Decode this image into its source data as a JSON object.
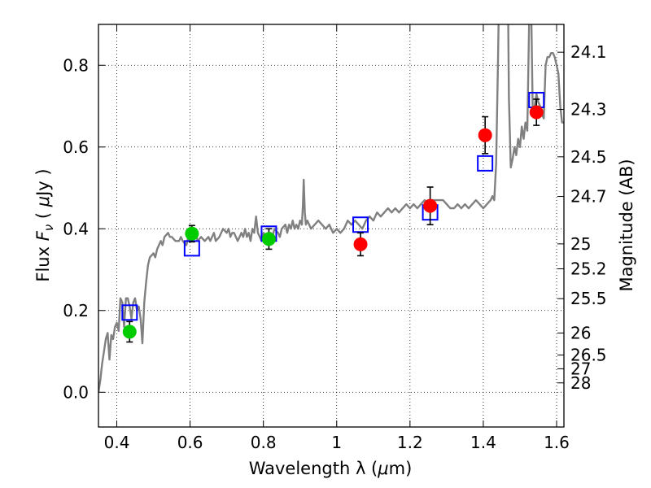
{
  "chart_data": {
    "type": "scatter",
    "title": "",
    "xlabel_prefix": "Wavelength  λ (",
    "xlabel_mu": "μ",
    "xlabel_suffix": "m)",
    "ylabel_prefix": "Flux  ",
    "ylabel_F": "F",
    "ylabel_nu": "ν",
    "ylabel_unit_open": "  ( ",
    "ylabel_mu": "μ",
    "ylabel_unit_close": "Jy )",
    "y2label": "Magnitude (AB)",
    "xlim": [
      0.35,
      1.62
    ],
    "ylim": [
      -0.085,
      0.9
    ],
    "grid": true,
    "x_ticks": [
      {
        "value": 0.4,
        "label": "0.4"
      },
      {
        "value": 0.6,
        "label": "0.6"
      },
      {
        "value": 0.8,
        "label": "0.8"
      },
      {
        "value": 1.0,
        "label": "1"
      },
      {
        "value": 1.2,
        "label": "1.2"
      },
      {
        "value": 1.4,
        "label": "1.4"
      },
      {
        "value": 1.6,
        "label": "1.6"
      }
    ],
    "y_ticks": [
      {
        "value": 0.0,
        "label": "0.0"
      },
      {
        "value": 0.2,
        "label": "0.2"
      },
      {
        "value": 0.4,
        "label": "0.4"
      },
      {
        "value": 0.6,
        "label": "0.6"
      },
      {
        "value": 0.8,
        "label": "0.8"
      }
    ],
    "y2_ticks": [
      {
        "flux": 0.832,
        "label": "24.1"
      },
      {
        "flux": 0.692,
        "label": "24.3"
      },
      {
        "flux": 0.576,
        "label": "24.5"
      },
      {
        "flux": 0.479,
        "label": "24.7"
      },
      {
        "flux": 0.363,
        "label": "25"
      },
      {
        "flux": 0.302,
        "label": "25.2"
      },
      {
        "flux": 0.229,
        "label": "25.5"
      },
      {
        "flux": 0.145,
        "label": "26"
      },
      {
        "flux": 0.0912,
        "label": "26.5"
      },
      {
        "flux": 0.0575,
        "label": "27"
      },
      {
        "flux": 0.0229,
        "label": "28"
      }
    ],
    "series": [
      {
        "kind": "line",
        "color": "#808080",
        "points": [
          [
            0.35,
            0.0
          ],
          [
            0.355,
            0.03
          ],
          [
            0.36,
            0.07
          ],
          [
            0.365,
            0.1
          ],
          [
            0.37,
            0.13
          ],
          [
            0.375,
            0.145
          ],
          [
            0.38,
            0.08
          ],
          [
            0.385,
            0.14
          ],
          [
            0.39,
            0.13
          ],
          [
            0.395,
            0.16
          ],
          [
            0.4,
            0.17
          ],
          [
            0.405,
            0.15
          ],
          [
            0.41,
            0.23
          ],
          [
            0.415,
            0.22
          ],
          [
            0.42,
            0.16
          ],
          [
            0.425,
            0.23
          ],
          [
            0.43,
            0.23
          ],
          [
            0.435,
            0.21
          ],
          [
            0.44,
            0.18
          ],
          [
            0.445,
            0.22
          ],
          [
            0.45,
            0.23
          ],
          [
            0.455,
            0.2
          ],
          [
            0.46,
            0.21
          ],
          [
            0.465,
            0.18
          ],
          [
            0.47,
            0.12
          ],
          [
            0.475,
            0.22
          ],
          [
            0.48,
            0.27
          ],
          [
            0.485,
            0.31
          ],
          [
            0.49,
            0.33
          ],
          [
            0.5,
            0.34
          ],
          [
            0.505,
            0.33
          ],
          [
            0.51,
            0.35
          ],
          [
            0.52,
            0.37
          ],
          [
            0.525,
            0.36
          ],
          [
            0.53,
            0.38
          ],
          [
            0.54,
            0.39
          ],
          [
            0.545,
            0.38
          ],
          [
            0.55,
            0.38
          ],
          [
            0.56,
            0.37
          ],
          [
            0.57,
            0.37
          ],
          [
            0.575,
            0.38
          ],
          [
            0.58,
            0.37
          ],
          [
            0.59,
            0.36
          ],
          [
            0.595,
            0.38
          ],
          [
            0.6,
            0.37
          ],
          [
            0.605,
            0.39
          ],
          [
            0.61,
            0.38
          ],
          [
            0.615,
            0.39
          ],
          [
            0.62,
            0.37
          ],
          [
            0.63,
            0.38
          ],
          [
            0.64,
            0.37
          ],
          [
            0.65,
            0.38
          ],
          [
            0.655,
            0.37
          ],
          [
            0.66,
            0.38
          ],
          [
            0.665,
            0.39
          ],
          [
            0.67,
            0.37
          ],
          [
            0.68,
            0.38
          ],
          [
            0.69,
            0.4
          ],
          [
            0.7,
            0.39
          ],
          [
            0.705,
            0.4
          ],
          [
            0.71,
            0.38
          ],
          [
            0.715,
            0.39
          ],
          [
            0.72,
            0.39
          ],
          [
            0.73,
            0.37
          ],
          [
            0.74,
            0.39
          ],
          [
            0.745,
            0.38
          ],
          [
            0.75,
            0.4
          ],
          [
            0.755,
            0.38
          ],
          [
            0.76,
            0.39
          ],
          [
            0.765,
            0.37
          ],
          [
            0.77,
            0.4
          ],
          [
            0.775,
            0.39
          ],
          [
            0.78,
            0.43
          ],
          [
            0.785,
            0.39
          ],
          [
            0.79,
            0.38
          ],
          [
            0.795,
            0.37
          ],
          [
            0.8,
            0.39
          ],
          [
            0.81,
            0.38
          ],
          [
            0.82,
            0.39
          ],
          [
            0.825,
            0.38
          ],
          [
            0.83,
            0.4
          ],
          [
            0.84,
            0.39
          ],
          [
            0.845,
            0.38
          ],
          [
            0.85,
            0.4
          ],
          [
            0.86,
            0.41
          ],
          [
            0.865,
            0.39
          ],
          [
            0.87,
            0.41
          ],
          [
            0.875,
            0.4
          ],
          [
            0.88,
            0.42
          ],
          [
            0.885,
            0.4
          ],
          [
            0.89,
            0.41
          ],
          [
            0.895,
            0.4
          ],
          [
            0.9,
            0.42
          ],
          [
            0.905,
            0.41
          ],
          [
            0.908,
            0.46
          ],
          [
            0.91,
            0.52
          ],
          [
            0.913,
            0.44
          ],
          [
            0.916,
            0.41
          ],
          [
            0.92,
            0.42
          ],
          [
            0.93,
            0.4
          ],
          [
            0.94,
            0.41
          ],
          [
            0.95,
            0.42
          ],
          [
            0.96,
            0.41
          ],
          [
            0.97,
            0.4
          ],
          [
            0.98,
            0.41
          ],
          [
            0.99,
            0.39
          ],
          [
            1.0,
            0.4
          ],
          [
            1.01,
            0.39
          ],
          [
            1.02,
            0.4
          ],
          [
            1.03,
            0.42
          ],
          [
            1.04,
            0.41
          ],
          [
            1.05,
            0.42
          ],
          [
            1.06,
            0.41
          ],
          [
            1.07,
            0.4
          ],
          [
            1.08,
            0.42
          ],
          [
            1.09,
            0.43
          ],
          [
            1.1,
            0.42
          ],
          [
            1.11,
            0.44
          ],
          [
            1.12,
            0.43
          ],
          [
            1.13,
            0.44
          ],
          [
            1.14,
            0.45
          ],
          [
            1.15,
            0.44
          ],
          [
            1.16,
            0.45
          ],
          [
            1.17,
            0.44
          ],
          [
            1.18,
            0.45
          ],
          [
            1.19,
            0.46
          ],
          [
            1.2,
            0.45
          ],
          [
            1.21,
            0.46
          ],
          [
            1.22,
            0.45
          ],
          [
            1.23,
            0.46
          ],
          [
            1.24,
            0.47
          ],
          [
            1.25,
            0.46
          ],
          [
            1.26,
            0.47
          ],
          [
            1.27,
            0.47
          ],
          [
            1.28,
            0.47
          ],
          [
            1.29,
            0.47
          ],
          [
            1.3,
            0.46
          ],
          [
            1.31,
            0.45
          ],
          [
            1.32,
            0.45
          ],
          [
            1.33,
            0.46
          ],
          [
            1.34,
            0.45
          ],
          [
            1.35,
            0.46
          ],
          [
            1.36,
            0.45
          ],
          [
            1.37,
            0.46
          ],
          [
            1.38,
            0.47
          ],
          [
            1.39,
            0.46
          ],
          [
            1.4,
            0.45
          ],
          [
            1.41,
            0.46
          ],
          [
            1.42,
            0.47
          ],
          [
            1.425,
            0.48
          ],
          [
            1.43,
            0.47
          ],
          [
            1.435,
            0.56
          ],
          [
            1.44,
            0.8
          ],
          [
            1.445,
            1.1
          ],
          [
            1.45,
            1.2
          ],
          [
            1.455,
            1.3
          ],
          [
            1.46,
            1.35
          ],
          [
            1.465,
            1.2
          ],
          [
            1.47,
            0.72
          ],
          [
            1.475,
            0.55
          ],
          [
            1.48,
            0.57
          ],
          [
            1.485,
            0.6
          ],
          [
            1.49,
            0.58
          ],
          [
            1.495,
            0.62
          ],
          [
            1.5,
            0.6
          ],
          [
            1.505,
            0.65
          ],
          [
            1.51,
            0.62
          ],
          [
            1.515,
            0.66
          ],
          [
            1.52,
            0.64
          ],
          [
            1.525,
            0.9
          ],
          [
            1.53,
            0.98
          ],
          [
            1.535,
            0.68
          ],
          [
            1.54,
            0.7
          ],
          [
            1.545,
            0.73
          ],
          [
            1.55,
            0.71
          ],
          [
            1.555,
            0.7
          ],
          [
            1.56,
            0.68
          ],
          [
            1.565,
            0.67
          ],
          [
            1.57,
            0.8
          ],
          [
            1.575,
            0.82
          ],
          [
            1.58,
            0.82
          ],
          [
            1.585,
            0.83
          ],
          [
            1.59,
            0.83
          ],
          [
            1.595,
            0.82
          ],
          [
            1.6,
            0.8
          ],
          [
            1.605,
            0.78
          ],
          [
            1.61,
            0.7
          ],
          [
            1.615,
            0.66
          ],
          [
            1.62,
            0.66
          ]
        ]
      },
      {
        "kind": "points",
        "marker": "open-square",
        "color": "#0000ff",
        "points": [
          [
            0.435,
            0.195
          ],
          [
            0.605,
            0.352
          ],
          [
            0.815,
            0.388
          ],
          [
            1.065,
            0.41
          ],
          [
            1.255,
            0.44
          ],
          [
            1.405,
            0.56
          ],
          [
            1.545,
            0.715
          ]
        ]
      },
      {
        "kind": "points",
        "marker": "circle",
        "color": "#00cc00",
        "points": [
          [
            0.435,
            0.148
          ],
          [
            0.605,
            0.388
          ],
          [
            0.815,
            0.375
          ]
        ],
        "errors": [
          0.025,
          0.02,
          0.025
        ]
      },
      {
        "kind": "points",
        "marker": "circle",
        "color": "#ff0000",
        "points": [
          [
            1.065,
            0.362
          ],
          [
            1.255,
            0.456
          ],
          [
            1.405,
            0.629
          ],
          [
            1.545,
            0.685
          ]
        ],
        "errors": [
          0.028,
          0.046,
          0.045,
          0.032
        ]
      }
    ]
  }
}
